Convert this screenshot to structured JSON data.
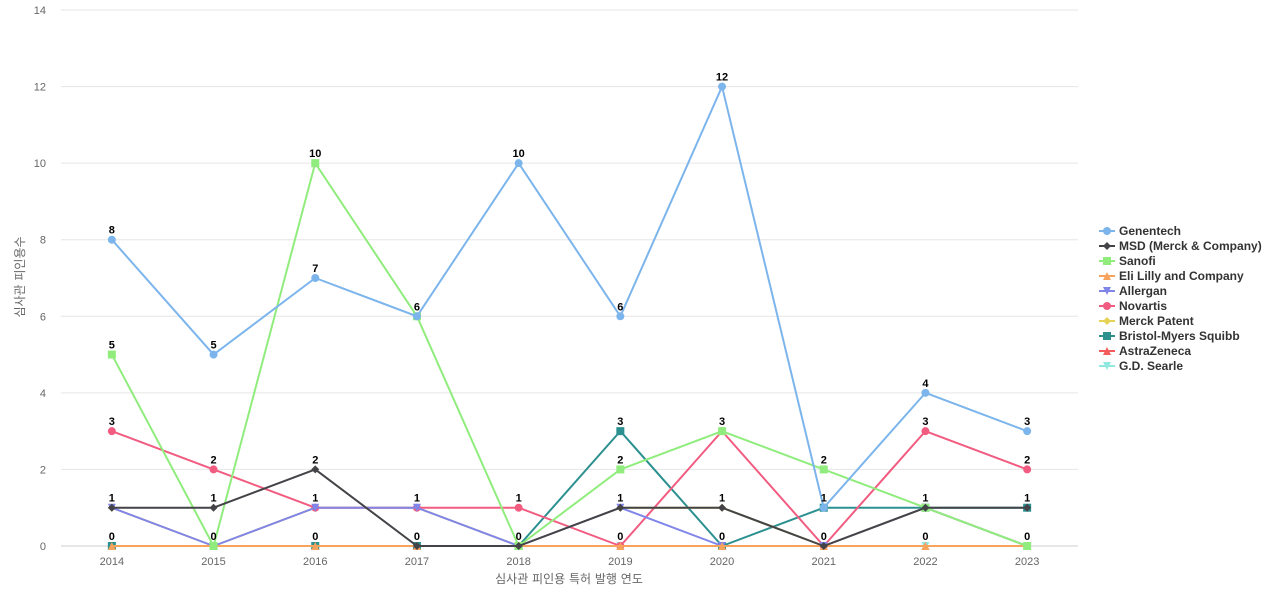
{
  "chart_data": {
    "type": "line",
    "title": "",
    "xlabel": "심사관 피인용 특허 발행 연도",
    "ylabel": "심사관 피인용수",
    "x": [
      "2014",
      "2015",
      "2016",
      "2017",
      "2018",
      "2019",
      "2020",
      "2021",
      "2022",
      "2023"
    ],
    "ylim": [
      0,
      14
    ],
    "yticks": [
      0,
      2,
      4,
      6,
      8,
      10,
      12,
      14
    ],
    "grid": true,
    "legend_position": "right",
    "series": [
      {
        "name": "Genentech",
        "color": "#7cb5ec",
        "marker": "circle",
        "values": [
          8,
          5,
          7,
          6,
          10,
          6,
          12,
          1,
          4,
          3
        ],
        "labeled": true
      },
      {
        "name": "MSD (Merck & Company)",
        "color": "#434348",
        "marker": "diamond",
        "values": [
          1,
          1,
          2,
          0,
          0,
          1,
          1,
          0,
          1,
          1
        ],
        "labeled": false
      },
      {
        "name": "Sanofi",
        "color": "#90ed7d",
        "marker": "square",
        "values": [
          5,
          0,
          10,
          6,
          0,
          2,
          3,
          2,
          1,
          0
        ],
        "labeled": true
      },
      {
        "name": "Eli Lilly and Company",
        "color": "#f7a35c",
        "marker": "triangle",
        "values": [
          0,
          0,
          0,
          0,
          0,
          0,
          0,
          0,
          0,
          0
        ],
        "labeled": false
      },
      {
        "name": "Allergan",
        "color": "#8085e9",
        "marker": "triangle-down",
        "values": [
          1,
          0,
          1,
          1,
          0,
          1,
          0,
          0,
          1,
          0
        ],
        "labeled": false
      },
      {
        "name": "Novartis",
        "color": "#f15c80",
        "marker": "circle",
        "values": [
          3,
          2,
          1,
          1,
          1,
          0,
          3,
          0,
          3,
          2
        ],
        "labeled": true
      },
      {
        "name": "Merck Patent",
        "color": "#e4d354",
        "marker": "diamond",
        "values": [
          1,
          0,
          1,
          1,
          0,
          1,
          1,
          0,
          1,
          0
        ],
        "labeled": false
      },
      {
        "name": "Bristol-Myers Squibb",
        "color": "#2b908f",
        "marker": "square",
        "values": [
          0,
          0,
          0,
          0,
          0,
          3,
          0,
          1,
          1,
          1
        ],
        "labeled": false
      },
      {
        "name": "AstraZeneca",
        "color": "#f45b5b",
        "marker": "triangle",
        "values": [
          0,
          0,
          0,
          0,
          0,
          0,
          0,
          0,
          0,
          0
        ],
        "labeled": false
      },
      {
        "name": "G.D. Searle",
        "color": "#91e8e1",
        "marker": "triangle-down",
        "values": [
          0,
          0,
          0,
          0,
          0,
          0,
          0,
          0,
          0,
          0
        ],
        "labeled": false
      }
    ],
    "data_labels": [
      {
        "x": "2014",
        "values": [
          8,
          5,
          3,
          1,
          0
        ]
      },
      {
        "x": "2015",
        "values": [
          5,
          2,
          1,
          0
        ]
      },
      {
        "x": "2016",
        "values": [
          10,
          7,
          2,
          1,
          0
        ]
      },
      {
        "x": "2017",
        "values": [
          6,
          1,
          0
        ]
      },
      {
        "x": "2018",
        "values": [
          10,
          1,
          0
        ]
      },
      {
        "x": "2019",
        "values": [
          6,
          3,
          2,
          1,
          0
        ]
      },
      {
        "x": "2020",
        "values": [
          12,
          3,
          1,
          0
        ]
      },
      {
        "x": "2021",
        "values": [
          2,
          1,
          0
        ]
      },
      {
        "x": "2022",
        "values": [
          4,
          3,
          1,
          0
        ]
      },
      {
        "x": "2023",
        "values": [
          3,
          2,
          1,
          0
        ]
      }
    ]
  }
}
